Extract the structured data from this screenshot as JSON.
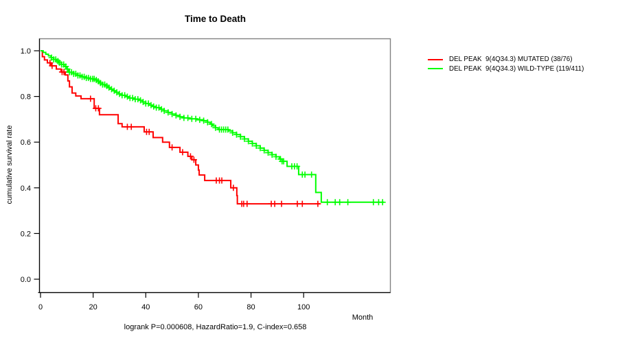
{
  "page_title": "Time to Death",
  "chart_data": {
    "type": "line",
    "subtype": "kaplan-meier-step",
    "title": "Time to Death",
    "xlabel": "Month",
    "ylabel": "cumulative survival rate",
    "footer": "logrank P=0.000608, HazardRatio=1.9, C-index=0.658",
    "x_ticks": [
      0,
      20,
      40,
      60,
      80,
      100
    ],
    "y_ticks": [
      "0.0",
      "0.2",
      "0.4",
      "0.6",
      "0.8",
      "1.0"
    ],
    "xlim": [
      0,
      133
    ],
    "ylim": [
      0,
      1
    ],
    "grid": "off",
    "legend_position": "right-outside",
    "axis_color": "#000000",
    "box_color": "#808080",
    "series": [
      {
        "key": "mutated",
        "name": "DEL PEAK  9(4Q34.3) MUTATED (38/76)",
        "color": "#ff0000",
        "end": 106.3,
        "steps": [
          [
            0,
            1
          ],
          [
            0.7,
            0.974
          ],
          [
            1.5,
            0.96
          ],
          [
            2.6,
            0.947
          ],
          [
            4,
            0.934
          ],
          [
            6,
            0.92
          ],
          [
            7.8,
            0.907
          ],
          [
            9.4,
            0.894
          ],
          [
            10.4,
            0.868
          ],
          [
            11,
            0.842
          ],
          [
            12,
            0.815
          ],
          [
            13.4,
            0.802
          ],
          [
            15.4,
            0.79
          ],
          [
            20.4,
            0.748
          ],
          [
            22.4,
            0.72
          ],
          [
            29.5,
            0.681
          ],
          [
            31,
            0.667
          ],
          [
            39.4,
            0.645
          ],
          [
            42.8,
            0.62
          ],
          [
            46.4,
            0.6
          ],
          [
            49,
            0.577
          ],
          [
            53,
            0.556
          ],
          [
            56,
            0.538
          ],
          [
            57.5,
            0.523
          ],
          [
            59,
            0.5
          ],
          [
            60,
            0.478
          ],
          [
            60.3,
            0.456
          ],
          [
            62.4,
            0.432
          ],
          [
            72.3,
            0.4
          ],
          [
            74.6,
            0.366
          ],
          [
            74.8,
            0.33
          ]
        ],
        "censors": [
          3.6,
          4.4,
          8.2,
          8.9,
          19,
          21,
          22,
          33,
          34.5,
          40.3,
          41.3,
          50,
          54,
          57,
          58.3,
          66.8,
          68,
          68.9,
          73.3,
          76.5,
          77.2,
          78.5,
          87.7,
          89,
          91.6,
          97.6,
          99.5,
          105.4
        ]
      },
      {
        "key": "wild-type",
        "name": "DEL PEAK  9(4Q34.3) WILD-TYPE (119/411)",
        "color": "#00ff00",
        "end": 130.5,
        "steps": [
          [
            0,
            1
          ],
          [
            1,
            0.993
          ],
          [
            2,
            0.985
          ],
          [
            3,
            0.978
          ],
          [
            4,
            0.97
          ],
          [
            5,
            0.962
          ],
          [
            6,
            0.955
          ],
          [
            7,
            0.948
          ],
          [
            8,
            0.94
          ],
          [
            9,
            0.931
          ],
          [
            10,
            0.92
          ],
          [
            10.7,
            0.906
          ],
          [
            12.5,
            0.899
          ],
          [
            14,
            0.892
          ],
          [
            15.5,
            0.886
          ],
          [
            17,
            0.881
          ],
          [
            18.5,
            0.877
          ],
          [
            20.5,
            0.872
          ],
          [
            21.5,
            0.866
          ],
          [
            22.5,
            0.859
          ],
          [
            23.5,
            0.852
          ],
          [
            24.5,
            0.846
          ],
          [
            25.5,
            0.839
          ],
          [
            26.5,
            0.832
          ],
          [
            27.5,
            0.825
          ],
          [
            28.5,
            0.818
          ],
          [
            29.8,
            0.811
          ],
          [
            31,
            0.805
          ],
          [
            32.2,
            0.799
          ],
          [
            33.5,
            0.793
          ],
          [
            35.5,
            0.788
          ],
          [
            37.5,
            0.783
          ],
          [
            38.8,
            0.776
          ],
          [
            40,
            0.769
          ],
          [
            41.2,
            0.762
          ],
          [
            42.5,
            0.756
          ],
          [
            44,
            0.751
          ],
          [
            45.5,
            0.744
          ],
          [
            47,
            0.737
          ],
          [
            48.5,
            0.73
          ],
          [
            50,
            0.723
          ],
          [
            51.5,
            0.717
          ],
          [
            53,
            0.711
          ],
          [
            54.5,
            0.706
          ],
          [
            56.5,
            0.702
          ],
          [
            59.5,
            0.698
          ],
          [
            62,
            0.694
          ],
          [
            63.5,
            0.687
          ],
          [
            64.5,
            0.679
          ],
          [
            65.5,
            0.671
          ],
          [
            66.5,
            0.663
          ],
          [
            67.5,
            0.655
          ],
          [
            71.5,
            0.649
          ],
          [
            73,
            0.641
          ],
          [
            74.5,
            0.633
          ],
          [
            76,
            0.624
          ],
          [
            77.5,
            0.614
          ],
          [
            79,
            0.604
          ],
          [
            80.5,
            0.594
          ],
          [
            82,
            0.584
          ],
          [
            83.5,
            0.574
          ],
          [
            85,
            0.564
          ],
          [
            86.5,
            0.554
          ],
          [
            88,
            0.545
          ],
          [
            89.5,
            0.536
          ],
          [
            90.8,
            0.526
          ],
          [
            91.8,
            0.516
          ],
          [
            93.7,
            0.494
          ],
          [
            98.1,
            0.458
          ],
          [
            104.6,
            0.38
          ],
          [
            106.7,
            0.337
          ]
        ],
        "censors": [
          4.2,
          5,
          5.8,
          6.6,
          7.2,
          8,
          8.8,
          9.6,
          10.2,
          11,
          11.8,
          12.6,
          13.4,
          14.2,
          15,
          15.8,
          16.6,
          17.4,
          18.2,
          19,
          19.8,
          20.4,
          21.2,
          22,
          22.8,
          23.6,
          24.4,
          25.2,
          26,
          27,
          28,
          29,
          30,
          31,
          32,
          33,
          34,
          35,
          36,
          37,
          38,
          39,
          40,
          41,
          42,
          43,
          44,
          45,
          46,
          47,
          48.5,
          50,
          51.5,
          53,
          54.5,
          56,
          57.5,
          59,
          60.5,
          62,
          63.5,
          65,
          66.5,
          68,
          68.8,
          69.6,
          70.4,
          71.2,
          73,
          74.5,
          76,
          77.5,
          79,
          80.5,
          82,
          83.5,
          85,
          86.5,
          88,
          89.5,
          91.2,
          91.8,
          92.4,
          95.5,
          96.5,
          97.5,
          99.5,
          100.5,
          103,
          109,
          112,
          113.7,
          116.8,
          126.5,
          128.5,
          130
        ]
      }
    ]
  }
}
